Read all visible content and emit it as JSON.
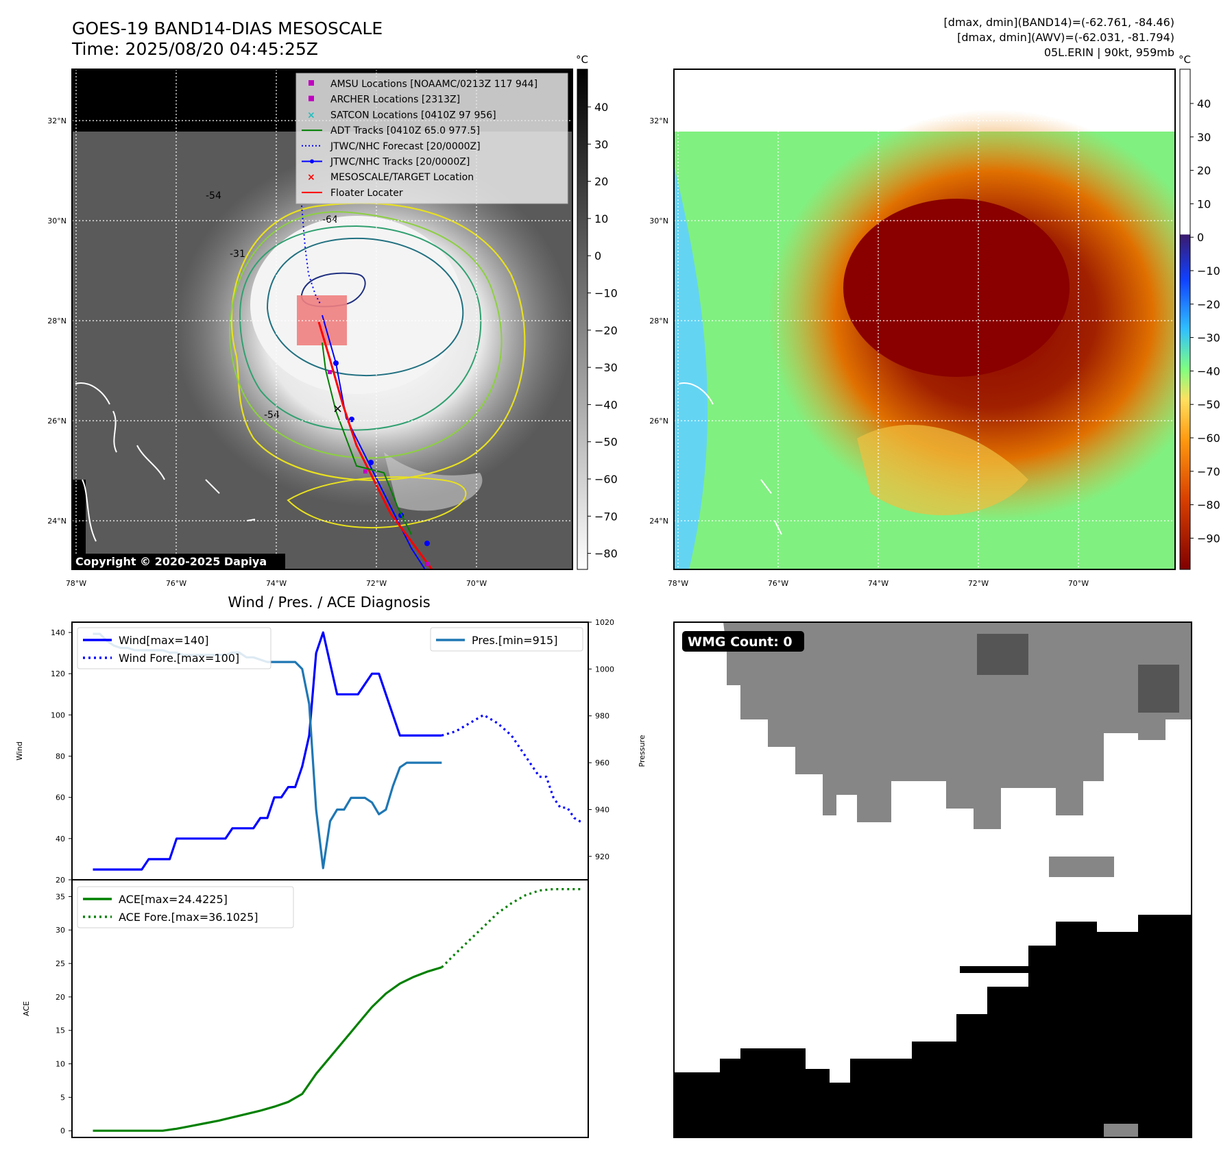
{
  "header": {
    "title": "GOES-19 BAND14-DIAS MESOSCALE",
    "time": "Time: 2025/08/20 04:45:25Z",
    "info_line1": "[dmax, dmin](BAND14)=(-62.761, -84.46)",
    "info_line2": "[dmax, dmin](AWV)=(-62.031, -81.794)",
    "info_line3": "05L.ERIN | 90kt, 959mb"
  },
  "map_common": {
    "lat_ticks": [
      "32°N",
      "30°N",
      "28°N",
      "26°N",
      "24°N"
    ],
    "lon_ticks": [
      "78°W",
      "76°W",
      "74°W",
      "72°W",
      "70°W"
    ]
  },
  "ir_panel": {
    "copyright": "Copyright © 2020-2025 Dapiya",
    "colorbar_unit": "°C",
    "colorbar_ticks": [
      "40",
      "30",
      "20",
      "10",
      "0",
      "−10",
      "−20",
      "−30",
      "−40",
      "−50",
      "−60",
      "−70",
      "−80"
    ],
    "contour_labels": [
      "-54",
      "-64",
      "-31",
      "-54"
    ],
    "legend": [
      {
        "label": "AMSU Locations [NOAAMC/0213Z 117 944]",
        "color": "#c000c0",
        "marker": "square"
      },
      {
        "label": "ARCHER Locations [2313Z]",
        "color": "#c000c0",
        "marker": "square"
      },
      {
        "label": "SATCON Locations [0410Z 97 956]",
        "color": "#20c0c0",
        "marker": "x"
      },
      {
        "label": "ADT Tracks [0410Z 65.0 977.5]",
        "color": "#008000",
        "marker": "line"
      },
      {
        "label": "JTWC/NHC Forecast [20/0000Z]",
        "color": "#0000ff",
        "marker": "dotted"
      },
      {
        "label": "JTWC/NHC Tracks [20/0000Z]",
        "color": "#0000ff",
        "marker": "line-dot"
      },
      {
        "label": "MESOSCALE/TARGET Location",
        "color": "#ff0000",
        "marker": "x"
      },
      {
        "label": "Floater Locater",
        "color": "#ff0000",
        "marker": "line"
      }
    ]
  },
  "wv_panel": {
    "colorbar_unit": "°C",
    "colorbar_ticks": [
      "40",
      "30",
      "20",
      "10",
      "0",
      "−10",
      "−20",
      "−30",
      "−40",
      "−50",
      "−60",
      "−70",
      "−80",
      "−90"
    ]
  },
  "wmg_panel": {
    "label": "WMG Count: 0"
  },
  "chart_data": [
    {
      "type": "line",
      "title": "Wind / Pres. / ACE Diagnosis",
      "ylabel": "Wind",
      "ylabel_right": "Pressure",
      "ylim": [
        20,
        145
      ],
      "ylim_right": [
        910,
        1020
      ],
      "yticks": [
        "140",
        "120",
        "100",
        "80",
        "60",
        "40",
        "20"
      ],
      "yticks_right": [
        "1020",
        "1000",
        "980",
        "960",
        "940",
        "920"
      ],
      "x": [
        0,
        1,
        2,
        3,
        4,
        5,
        6,
        7,
        8,
        9,
        10,
        11,
        12,
        13,
        14,
        15,
        16,
        17,
        18,
        19,
        20,
        21,
        22,
        23,
        24,
        25,
        26,
        27,
        28,
        29,
        30,
        31,
        32,
        33,
        34,
        35,
        36,
        37,
        38,
        39,
        40,
        41,
        42,
        43,
        44,
        45,
        46,
        47,
        48,
        49,
        50
      ],
      "xlim": [
        -3,
        71
      ],
      "series": [
        {
          "name": "Wind[max=140]",
          "color": "#0000ff",
          "style": "solid",
          "axis": "left",
          "values": [
            25,
            25,
            25,
            25,
            25,
            25,
            25,
            25,
            30,
            30,
            30,
            30,
            40,
            40,
            40,
            40,
            40,
            40,
            40,
            40,
            45,
            45,
            45,
            45,
            50,
            50,
            60,
            60,
            65,
            65,
            75,
            90,
            130,
            140,
            125,
            110,
            110,
            110,
            110,
            115,
            120,
            120,
            110,
            100,
            90,
            90,
            90,
            90,
            90,
            90,
            90
          ]
        },
        {
          "name": "Wind Fore.[max=100]",
          "color": "#0000ff",
          "style": "dotted",
          "axis": "left",
          "x": [
            50,
            52,
            54,
            56,
            58,
            60,
            62,
            64,
            65,
            66,
            67,
            68,
            69,
            70
          ],
          "values": [
            90,
            92,
            96,
            100,
            96,
            90,
            80,
            70,
            70,
            60,
            55,
            55,
            50,
            48
          ]
        },
        {
          "name": "Pres.[min=915]",
          "color": "#1f77b4",
          "style": "solid",
          "axis": "right",
          "values": [
            1015,
            1015,
            1012,
            1010,
            1009,
            1009,
            1008,
            1008,
            1008,
            1008,
            1008,
            1007,
            1007,
            1006,
            1006,
            1006,
            1006,
            1006,
            1006,
            1006,
            1007,
            1007,
            1005,
            1005,
            1004,
            1003,
            1003,
            1003,
            1003,
            1003,
            1000,
            985,
            940,
            915,
            935,
            940,
            940,
            945,
            945,
            945,
            943,
            938,
            940,
            950,
            958,
            960,
            960,
            960,
            960,
            960,
            960
          ]
        }
      ]
    },
    {
      "type": "line",
      "ylabel": "ACE",
      "ylim": [
        -1,
        37.5
      ],
      "yticks": [
        "35",
        "30",
        "25",
        "20",
        "15",
        "10",
        "5",
        "0"
      ],
      "x": [
        0,
        2,
        4,
        6,
        8,
        10,
        12,
        14,
        16,
        18,
        20,
        22,
        24,
        26,
        28,
        30,
        32,
        34,
        36,
        38,
        40,
        42,
        44,
        46,
        48,
        50
      ],
      "xlim": [
        -3,
        71
      ],
      "series": [
        {
          "name": "ACE[max=24.4225]",
          "color": "#008000",
          "style": "solid",
          "values": [
            0,
            0,
            0,
            0,
            0,
            0,
            0.3,
            0.7,
            1.1,
            1.5,
            2.0,
            2.5,
            3.0,
            3.6,
            4.3,
            5.5,
            8.5,
            11.0,
            13.5,
            16.0,
            18.5,
            20.5,
            22.0,
            23.0,
            23.8,
            24.4225
          ]
        },
        {
          "name": "ACE Fore.[max=36.1025]",
          "color": "#008000",
          "style": "dotted",
          "x": [
            50,
            52,
            54,
            56,
            58,
            60,
            62,
            64,
            66,
            68,
            70
          ],
          "values": [
            24.4225,
            26.5,
            28.5,
            30.5,
            32.5,
            34.0,
            35.2,
            35.9,
            36.1025,
            36.1025,
            36.1025
          ]
        }
      ]
    }
  ]
}
